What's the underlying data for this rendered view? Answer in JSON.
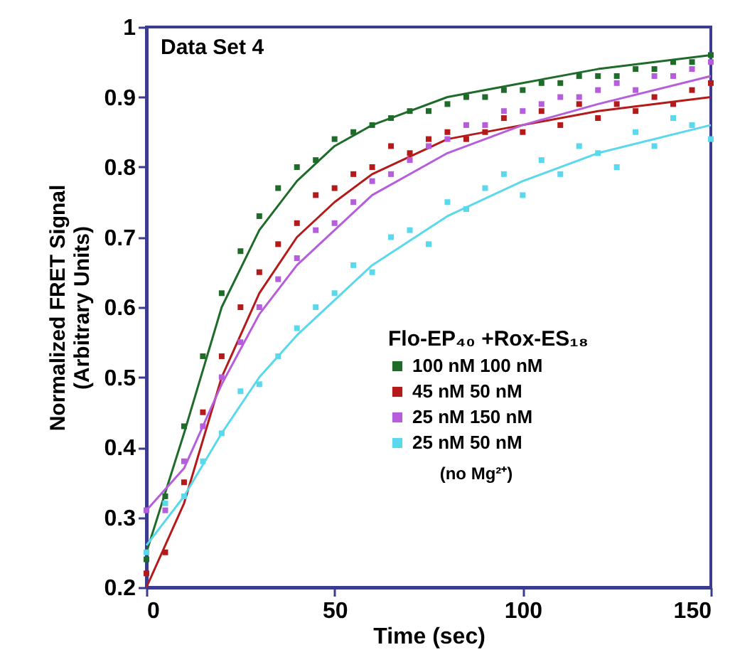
{
  "chart_data": {
    "type": "scatter",
    "xlabel": "Time (sec)",
    "ylabel": "Normalized FRET Signal (Arbitrary Units)",
    "legend_title": "Flo-EP₄₀ +Rox-ES₁₈",
    "annotations": [
      "Data Set 4",
      "(no Mg²⁺)"
    ],
    "xlim": [
      0,
      150
    ],
    "ylim": [
      0.2,
      1
    ],
    "xticks": [
      0,
      50,
      100,
      150
    ],
    "yticks": [
      0.2,
      0.3,
      0.4,
      0.5,
      0.6,
      0.7,
      0.8,
      0.9,
      1
    ],
    "grid": false,
    "legend": "bottom right",
    "marker": "square",
    "x": [
      0,
      5,
      10,
      15,
      20,
      25,
      30,
      35,
      40,
      45,
      50,
      55,
      60,
      65,
      70,
      75,
      80,
      85,
      90,
      95,
      100,
      105,
      110,
      115,
      120,
      125,
      130,
      135,
      140,
      145,
      150
    ],
    "series": [
      {
        "name": "100 nM   100 nM",
        "color": "#1e6b2a",
        "values": [
          0.24,
          0.33,
          0.43,
          0.53,
          0.62,
          0.68,
          0.73,
          0.77,
          0.8,
          0.81,
          0.84,
          0.85,
          0.86,
          0.87,
          0.88,
          0.88,
          0.89,
          0.9,
          0.9,
          0.91,
          0.91,
          0.92,
          0.92,
          0.93,
          0.93,
          0.93,
          0.94,
          0.94,
          0.95,
          0.95,
          0.96
        ]
      },
      {
        "name": "45 nM   50 nM",
        "color": "#b51a1a",
        "values": [
          0.22,
          0.25,
          0.35,
          0.45,
          0.53,
          0.6,
          0.65,
          0.69,
          0.72,
          0.76,
          0.77,
          0.79,
          0.8,
          0.83,
          0.82,
          0.84,
          0.85,
          0.84,
          0.85,
          0.87,
          0.85,
          0.88,
          0.86,
          0.89,
          0.87,
          0.89,
          0.88,
          0.9,
          0.89,
          0.91,
          0.92
        ]
      },
      {
        "name": "25 nM   150 nM",
        "color": "#b65ddc",
        "values": [
          0.31,
          0.31,
          0.38,
          0.43,
          0.5,
          0.55,
          0.6,
          0.64,
          0.67,
          0.71,
          0.72,
          0.75,
          0.78,
          0.79,
          0.81,
          0.83,
          0.84,
          0.86,
          0.86,
          0.88,
          0.88,
          0.89,
          0.9,
          0.9,
          0.91,
          0.92,
          0.91,
          0.93,
          0.93,
          0.94,
          0.95
        ]
      },
      {
        "name": "25 nM   50 nM",
        "color": "#5ad8ec",
        "values": [
          0.25,
          0.32,
          0.33,
          0.38,
          0.42,
          0.48,
          0.49,
          0.53,
          0.57,
          0.6,
          0.62,
          0.66,
          0.65,
          0.7,
          0.71,
          0.69,
          0.75,
          0.74,
          0.77,
          0.79,
          0.76,
          0.81,
          0.79,
          0.83,
          0.82,
          0.8,
          0.85,
          0.83,
          0.87,
          0.86,
          0.84
        ]
      },
      {
        "type": "line",
        "marker": "none",
        "color": "#1e6b2a",
        "x": [
          0,
          10,
          20,
          30,
          40,
          50,
          60,
          80,
          100,
          120,
          150
        ],
        "values": [
          0.25,
          0.42,
          0.6,
          0.71,
          0.78,
          0.83,
          0.86,
          0.9,
          0.92,
          0.94,
          0.96
        ]
      },
      {
        "type": "line",
        "marker": "none",
        "color": "#b51a1a",
        "x": [
          0,
          10,
          20,
          30,
          40,
          50,
          60,
          80,
          100,
          120,
          150
        ],
        "values": [
          0.2,
          0.32,
          0.5,
          0.62,
          0.7,
          0.75,
          0.79,
          0.84,
          0.86,
          0.88,
          0.9
        ]
      },
      {
        "type": "line",
        "marker": "none",
        "color": "#b65ddc",
        "x": [
          0,
          10,
          20,
          30,
          40,
          50,
          60,
          80,
          100,
          120,
          150
        ],
        "values": [
          0.31,
          0.37,
          0.49,
          0.59,
          0.66,
          0.71,
          0.76,
          0.82,
          0.86,
          0.89,
          0.93
        ]
      },
      {
        "type": "line",
        "marker": "none",
        "color": "#5ad8ec",
        "x": [
          0,
          10,
          20,
          30,
          40,
          50,
          60,
          80,
          100,
          120,
          150
        ],
        "values": [
          0.26,
          0.33,
          0.42,
          0.5,
          0.56,
          0.61,
          0.66,
          0.73,
          0.78,
          0.82,
          0.86
        ]
      }
    ]
  }
}
